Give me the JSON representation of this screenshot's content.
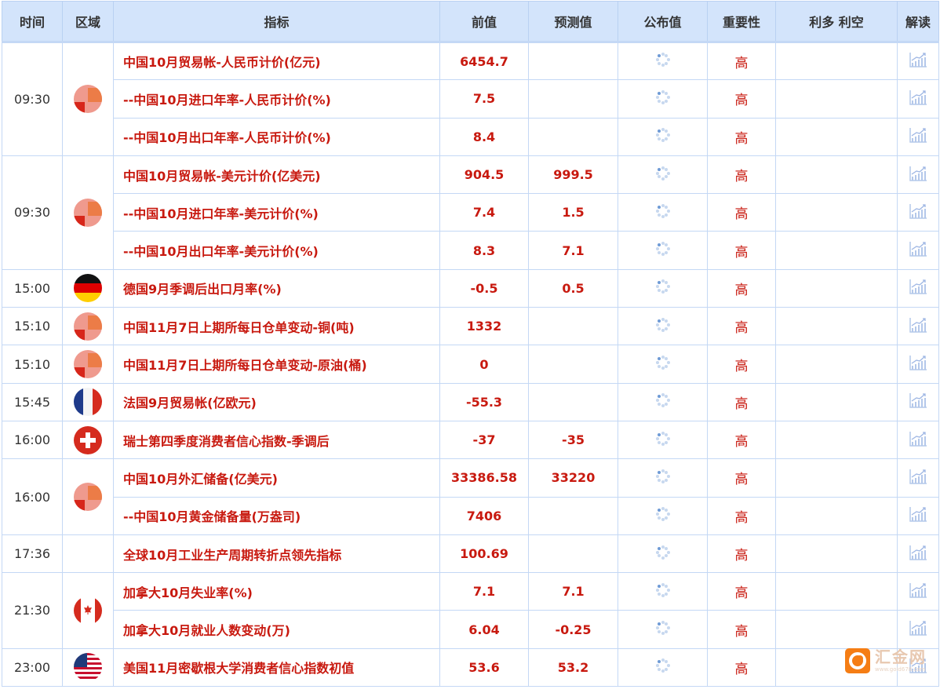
{
  "headers": [
    "时间",
    "区域",
    "指标",
    "前值",
    "预测值",
    "公布值",
    "重要性",
    "利多 利空",
    "解读"
  ],
  "colors": {
    "header_bg": "#d3e4fb",
    "indicator_text": "#c8190f",
    "border": "#c4d8f5"
  },
  "groups": [
    {
      "time": "09:30",
      "flag": "china",
      "rows": [
        {
          "name": "中国10月贸易帐-人民币计价(亿元)",
          "prev": "6454.7",
          "forecast": "",
          "importance": "高"
        },
        {
          "name": "--中国10月进口年率-人民币计价(%)",
          "prev": "7.5",
          "forecast": "",
          "importance": "高"
        },
        {
          "name": "--中国10月出口年率-人民币计价(%)",
          "prev": "8.4",
          "forecast": "",
          "importance": "高"
        }
      ]
    },
    {
      "time": "09:30",
      "flag": "china",
      "rows": [
        {
          "name": "中国10月贸易帐-美元计价(亿美元)",
          "prev": "904.5",
          "forecast": "999.5",
          "importance": "高"
        },
        {
          "name": "--中国10月进口年率-美元计价(%)",
          "prev": "7.4",
          "forecast": "1.5",
          "importance": "高"
        },
        {
          "name": "--中国10月出口年率-美元计价(%)",
          "prev": "8.3",
          "forecast": "7.1",
          "importance": "高"
        }
      ]
    },
    {
      "time": "15:00",
      "flag": "germany",
      "rows": [
        {
          "name": "德国9月季调后出口月率(%)",
          "prev": "-0.5",
          "forecast": "0.5",
          "importance": "高"
        }
      ]
    },
    {
      "time": "15:10",
      "flag": "china",
      "rows": [
        {
          "name": "中国11月7日上期所每日仓单变动-铜(吨)",
          "prev": "1332",
          "forecast": "",
          "importance": "高"
        }
      ]
    },
    {
      "time": "15:10",
      "flag": "china",
      "rows": [
        {
          "name": "中国11月7日上期所每日仓单变动-原油(桶)",
          "prev": "0",
          "forecast": "",
          "importance": "高"
        }
      ]
    },
    {
      "time": "15:45",
      "flag": "france",
      "rows": [
        {
          "name": "法国9月贸易帐(亿欧元)",
          "prev": "-55.3",
          "forecast": "",
          "importance": "高"
        }
      ]
    },
    {
      "time": "16:00",
      "flag": "switzerland",
      "rows": [
        {
          "name": "瑞士第四季度消费者信心指数-季调后",
          "prev": "-37",
          "forecast": "-35",
          "importance": "高"
        }
      ]
    },
    {
      "time": "16:00",
      "flag": "china",
      "rows": [
        {
          "name": "中国10月外汇储备(亿美元)",
          "prev": "33386.58",
          "forecast": "33220",
          "importance": "高"
        },
        {
          "name": "--中国10月黄金储备量(万盎司)",
          "prev": "7406",
          "forecast": "",
          "importance": "高"
        }
      ]
    },
    {
      "time": "17:36",
      "flag": "",
      "rows": [
        {
          "name": "全球10月工业生产周期转折点领先指标",
          "prev": "100.69",
          "forecast": "",
          "importance": "高"
        }
      ]
    },
    {
      "time": "21:30",
      "flag": "canada",
      "rows": [
        {
          "name": "加拿大10月失业率(%)",
          "prev": "7.1",
          "forecast": "7.1",
          "importance": "高"
        },
        {
          "name": "加拿大10月就业人数变动(万)",
          "prev": "6.04",
          "forecast": "-0.25",
          "importance": "高"
        }
      ]
    },
    {
      "time": "23:00",
      "flag": "usa",
      "rows": [
        {
          "name": "美国11月密歇根大学消费者信心指数初值",
          "prev": "53.6",
          "forecast": "53.2",
          "importance": "高"
        }
      ]
    }
  ],
  "watermark": {
    "brand": "汇金网",
    "url": "www.gold678.com"
  }
}
